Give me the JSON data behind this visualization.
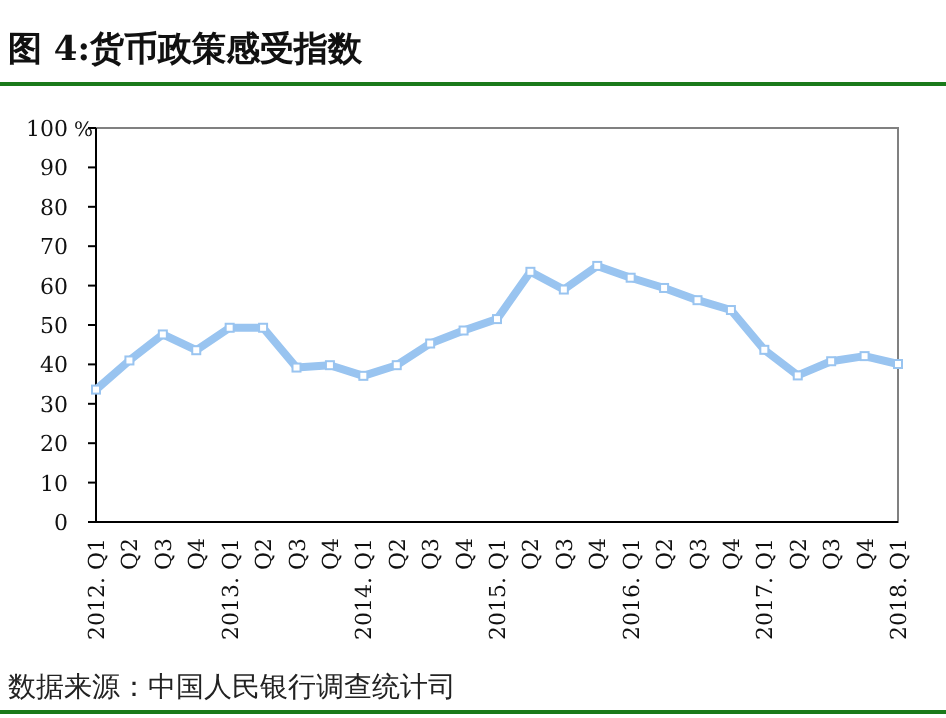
{
  "chart_data": {
    "type": "line",
    "title": "图 4:货币政策感受指数",
    "ylabel": "%",
    "categories": [
      "2012. Q1",
      "Q2",
      "Q3",
      "Q4",
      "2013. Q1",
      "Q2",
      "Q3",
      "Q4",
      "2014. Q1",
      "Q2",
      "Q3",
      "Q4",
      "2015. Q1",
      "Q2",
      "Q3",
      "Q4",
      "2016. Q1",
      "Q2",
      "Q3",
      "Q4",
      "2017. Q1",
      "Q2",
      "Q3",
      "Q4",
      "2018. Q1"
    ],
    "series": [
      {
        "color": "#99c4f0",
        "values": [
          33.6,
          41,
          47.6,
          43.6,
          49.3,
          49.3,
          39.2,
          39.8,
          37.1,
          39.8,
          45.3,
          48.6,
          51.5,
          63.5,
          59,
          65,
          62,
          59.4,
          56.3,
          53.8,
          43.7,
          37.2,
          40.8,
          42.1,
          40.1
        ]
      }
    ],
    "ylim": [
      0,
      100
    ],
    "yticks": [
      0,
      10,
      20,
      30,
      40,
      50,
      60,
      70,
      80,
      90,
      100
    ],
    "marker": "square",
    "annotations": [
      "数据来源：中国人民银行调查统计司"
    ]
  }
}
